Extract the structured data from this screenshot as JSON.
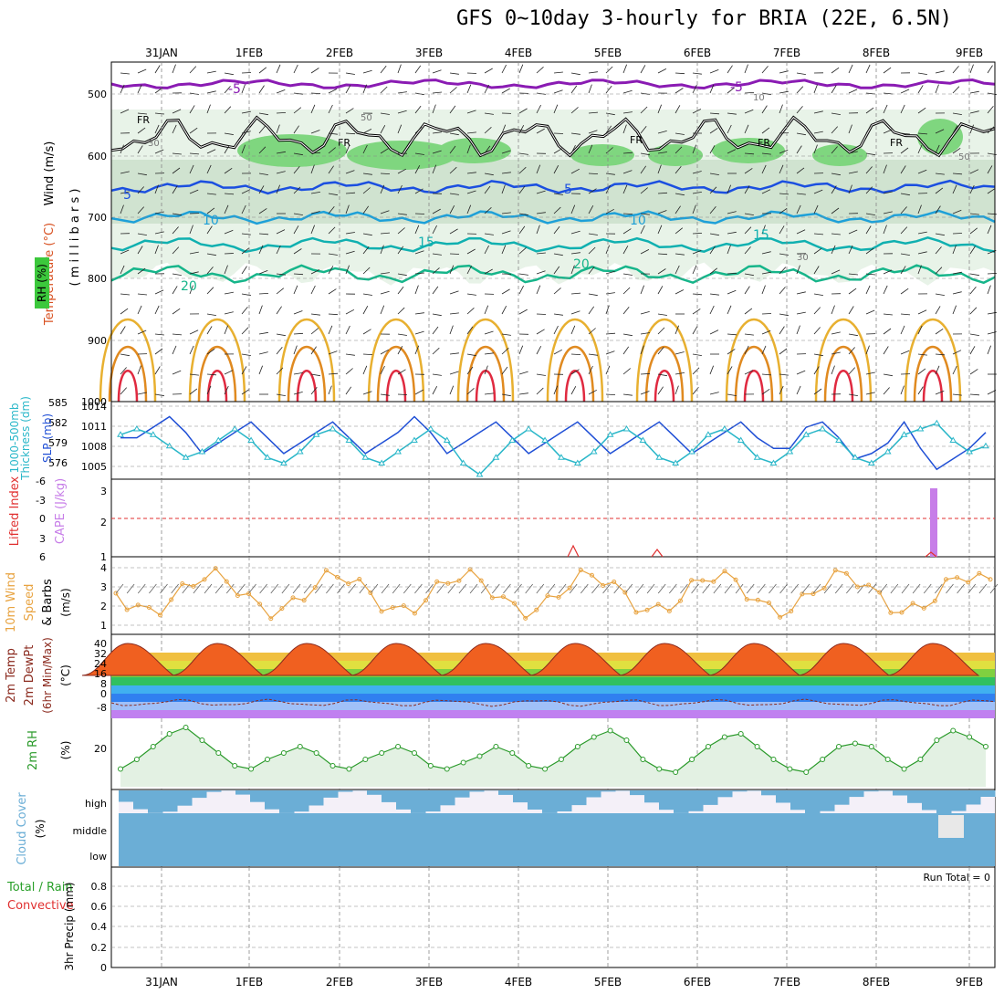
{
  "title": "GFS 0~10day 3-hourly for BRIA (22E, 6.5N)",
  "dates": [
    "31JAN",
    "1FEB",
    "2FEB",
    "3FEB",
    "4FEB",
    "5FEB",
    "6FEB",
    "7FEB",
    "8FEB",
    "9FEB"
  ],
  "colors": {
    "rh_light": "#e8f3e8",
    "rh_mid": "#c6dcc6",
    "rh_dark": "#7fd67f",
    "grid": "#888888",
    "slp": "#1f4fd6",
    "thk": "#2ab7c9",
    "cape": "#c77ee8",
    "wind": "#e8a340",
    "temp": "#8b2a1e",
    "rh2m": "#2a9a2a",
    "cloud": "#6baed6"
  },
  "panels": {
    "upper": {
      "ylabel_wind": "Wind (m/s)",
      "ylabel_temp": "Temperature (°C)",
      "ylabel_rh": "RH (%)",
      "ylabel_mb": "( m i l l i b a r s )",
      "yticks": [
        "500",
        "600",
        "700",
        "800",
        "900",
        "1000"
      ],
      "labels": [
        "-5",
        "-5",
        "FR",
        "FR",
        "FR",
        "FR",
        "FR",
        "5",
        "5",
        "10",
        "10",
        "15",
        "15",
        "20",
        "20",
        "30",
        "30",
        "50",
        "50",
        "10"
      ]
    },
    "slp": {
      "ylabel1": "1000-500mb",
      "ylabel2": "Thickness (dm)",
      "ylabel3": "SLP (mb)",
      "yticks_left": [
        "585",
        "582",
        "579",
        "576"
      ],
      "yticks_right": [
        "1014",
        "1011",
        "1008",
        "1005"
      ]
    },
    "cape": {
      "ylabel1": "Lifted Index",
      "ylabel2": "CAPE (J/kg)",
      "yticks_left": [
        "-6",
        "-3",
        "0",
        "3",
        "6"
      ],
      "yticks_right": [
        "3",
        "2",
        "1"
      ]
    },
    "wind10": {
      "ylabel1": "10m Wind",
      "ylabel2": "Speed",
      "ylabel3": "& Barbs",
      "ylabel4": "(m/s)",
      "yticks": [
        "4",
        "3",
        "2",
        "1"
      ]
    },
    "temp2m": {
      "ylabel1": "2m Temp",
      "ylabel2": "2m DewPt",
      "ylabel3": "(6hr Min/Max)",
      "ylabel4": "(°C)",
      "yticks": [
        "40",
        "32",
        "24",
        "16",
        "8",
        "0",
        "-8"
      ]
    },
    "rh2m": {
      "ylabel1": "2m RH",
      "ylabel2": "(%)",
      "yticks": [
        "20"
      ]
    },
    "cloud": {
      "ylabel1": "Cloud Cover",
      "ylabel2": "(%)",
      "levels": [
        "high",
        "middle",
        "low"
      ]
    },
    "precip": {
      "ylabel1": "Total / Rain",
      "ylabel2": "Convective",
      "ylabel3": "3hr Precip (mm)",
      "yticks": [
        "0.8",
        "0.6",
        "0.4",
        "0.2",
        "0"
      ],
      "run_total": "Run Total = 0"
    }
  },
  "chart_data": [
    {
      "type": "line",
      "title": "1000-500mb Thickness & SLP",
      "series": [
        {
          "name": "SLP",
          "values": [
            1010,
            1010,
            1012,
            1014,
            1011,
            1007,
            1009,
            1011,
            1013,
            1010,
            1007,
            1009,
            1011,
            1013,
            1010,
            1007,
            1009,
            1011,
            1014,
            1011,
            1007,
            1009,
            1011,
            1013,
            1010,
            1007,
            1009,
            1011,
            1013,
            1010,
            1007,
            1009,
            1011,
            1013,
            1010,
            1007,
            1009,
            1011,
            1013,
            1010,
            1008,
            1008,
            1012,
            1013,
            1010,
            1006,
            1007,
            1009,
            1013,
            1008,
            1004,
            1006,
            1008,
            1011
          ]
        },
        {
          "name": "Thickness",
          "values": [
            581,
            582,
            581,
            579,
            577,
            578,
            580,
            582,
            580,
            577,
            576,
            578,
            581,
            582,
            580,
            577,
            576,
            578,
            580,
            582,
            580,
            576,
            574,
            577,
            580,
            582,
            580,
            577,
            576,
            578,
            581,
            582,
            580,
            577,
            576,
            578,
            581,
            582,
            580,
            577,
            576,
            578,
            581,
            582,
            580,
            577,
            576,
            578,
            581,
            582,
            583,
            580,
            578,
            579
          ]
        }
      ]
    },
    {
      "type": "line",
      "title": "2m RH",
      "values": [
        15,
        18,
        22,
        26,
        28,
        24,
        20,
        16,
        15,
        18,
        20,
        22,
        20,
        16,
        15,
        18,
        20,
        22,
        20,
        16,
        15,
        17,
        19,
        22,
        20,
        16,
        15,
        18,
        22,
        25,
        27,
        24,
        18,
        15,
        14,
        18,
        22,
        25,
        26,
        22,
        18,
        15,
        14,
        18,
        22,
        23,
        22,
        18,
        15,
        18,
        24,
        27,
        25,
        22
      ]
    }
  ]
}
